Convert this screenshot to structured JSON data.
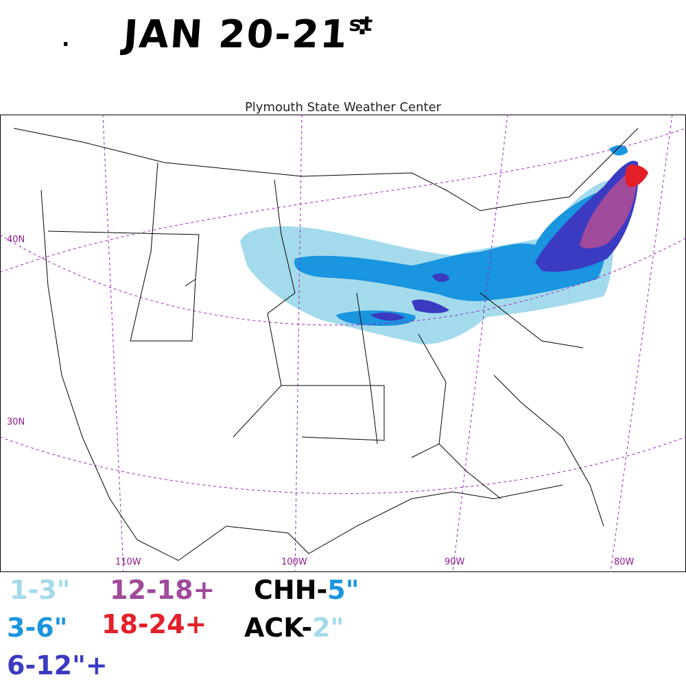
{
  "title": {
    "main": "JAN 20-21",
    "suffix": "st",
    "colon": ":",
    "dot": "."
  },
  "header": "Plymouth State Weather Center",
  "latitude_labels": [
    "40N",
    "30N"
  ],
  "longitude_labels": [
    "110W",
    "100W",
    "90W",
    "80W"
  ],
  "legend": [
    {
      "range": "1-3\"",
      "color": "#a4dbec"
    },
    {
      "range": "3-6\"",
      "color": "#1a95df"
    },
    {
      "range": "6-12\"+",
      "color": "#3b3bc2"
    },
    {
      "range": "12-18+",
      "color": "#a04a9c"
    },
    {
      "range": "18-24+",
      "color": "#e3202a"
    }
  ],
  "observations": [
    {
      "station": "CHH",
      "dash": "-",
      "amount": "5\"",
      "color": "#1a95df"
    },
    {
      "station": "ACK",
      "dash": "-",
      "amount": "2\"",
      "color": "#a4dbec"
    }
  ],
  "colors": {
    "light_blue": "#a4dbec",
    "blue": "#1a95df",
    "dark_blue": "#3b3bc2",
    "purple": "#a04a9c",
    "red": "#e3202a",
    "grid": "#a020c0"
  }
}
